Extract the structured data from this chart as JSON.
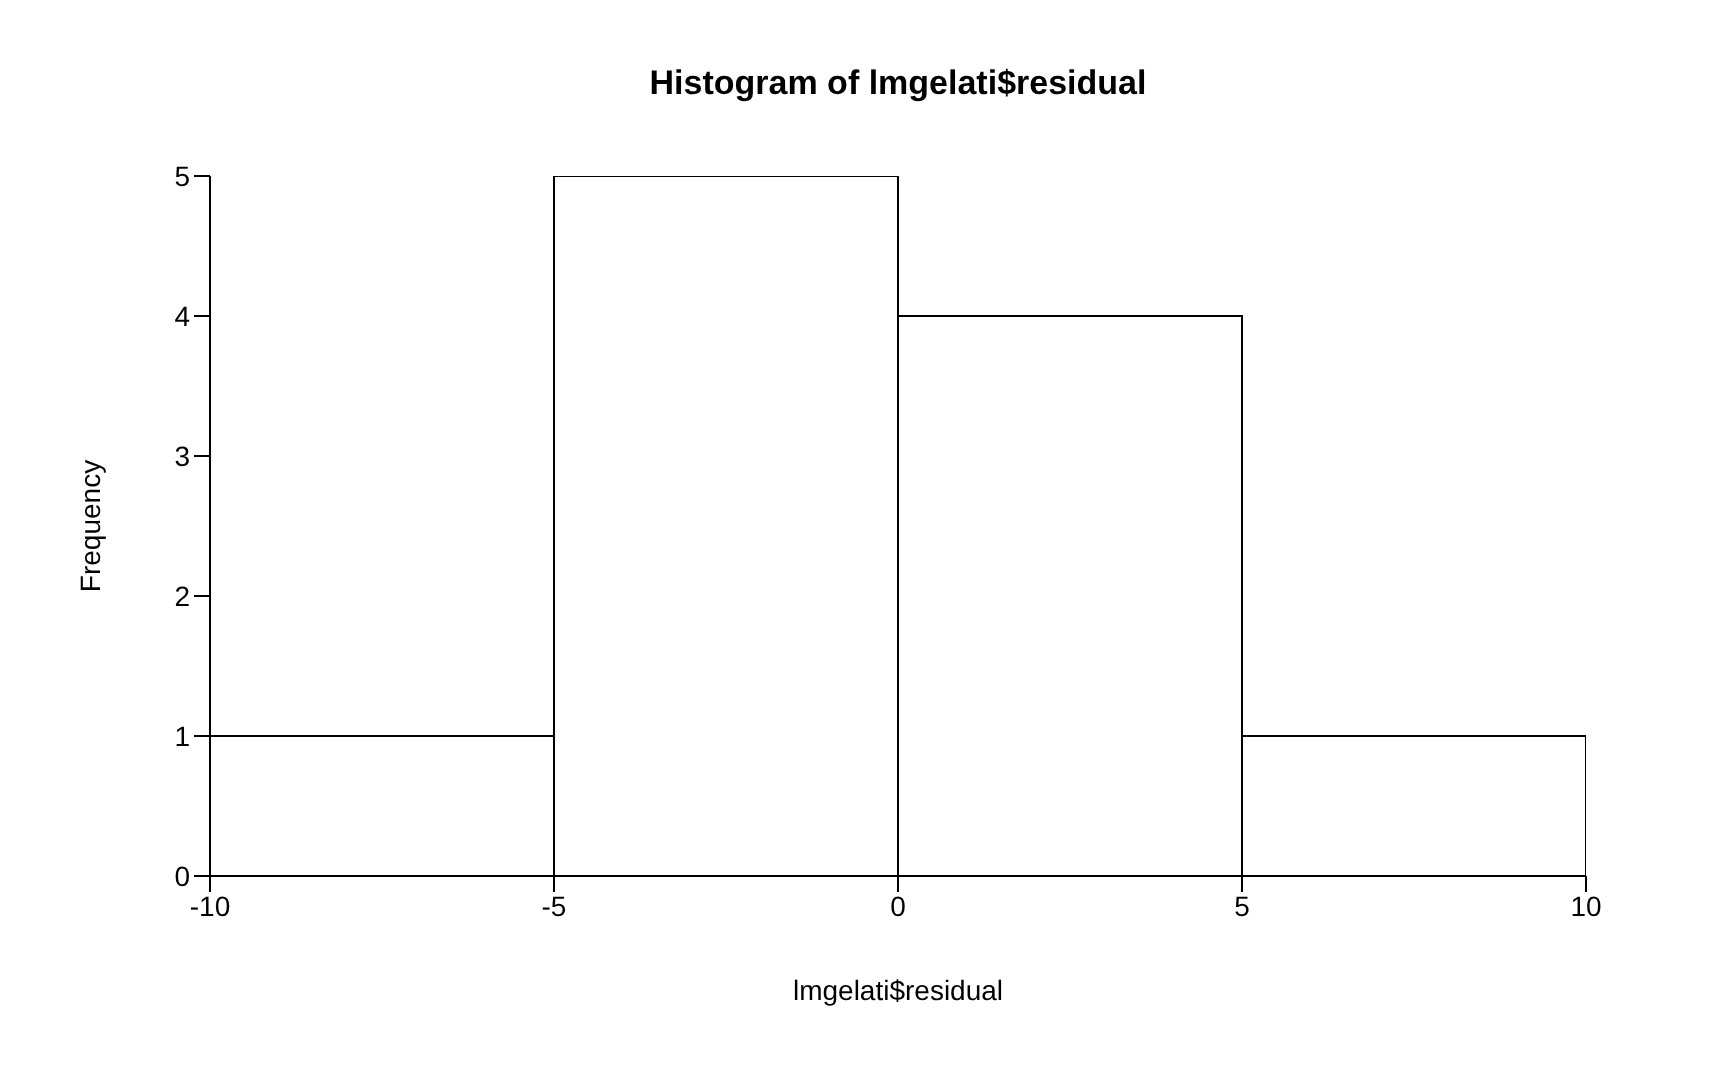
{
  "chart_data": {
    "type": "histogram",
    "title": "Histogram of lmgelati$residual",
    "xlabel": "lmgelati$residual",
    "ylabel": "Frequency",
    "bins": [
      -10,
      -5,
      0,
      5,
      10
    ],
    "values": [
      1,
      5,
      4,
      1
    ],
    "color": "#ffffff",
    "xlim": [
      -10,
      10
    ],
    "xticks": [
      -10,
      -5,
      0,
      5,
      10
    ],
    "ylim": [
      0,
      5
    ],
    "yticks": [
      0,
      1,
      2,
      3,
      4,
      5
    ],
    "grid": false,
    "legend": false
  }
}
